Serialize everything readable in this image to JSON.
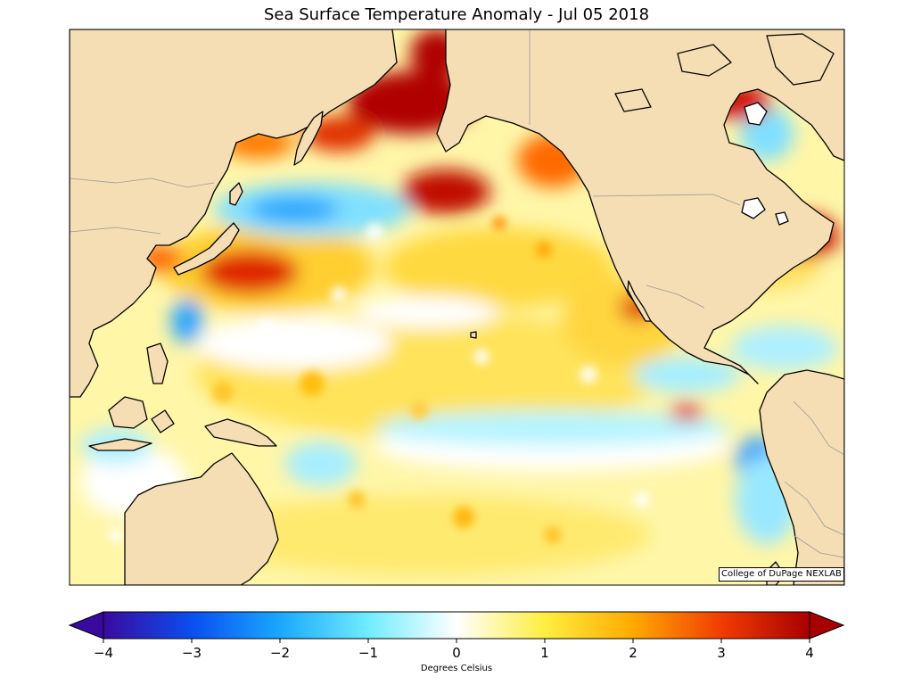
{
  "title": "Sea Surface Temperature Anomaly - Jul 05 2018",
  "credit": "College of DuPage NEXLAB",
  "colorbar": {
    "label": "Degrees Celsius",
    "min": -4,
    "max": 4,
    "ticks": [
      "−4",
      "−3",
      "−2",
      "−1",
      "0",
      "1",
      "2",
      "3",
      "4"
    ],
    "extend": "both",
    "colors": [
      "#3a0a9e",
      "#0a4ef0",
      "#1aa8ff",
      "#70ecff",
      "#ffffff",
      "#ffee40",
      "#ffaa00",
      "#f03c00",
      "#a80000"
    ]
  },
  "map": {
    "region": "North Pacific",
    "land_color": "#f5deb4",
    "coastline_color": "#000000",
    "border_color": "#9a9a9a"
  }
}
